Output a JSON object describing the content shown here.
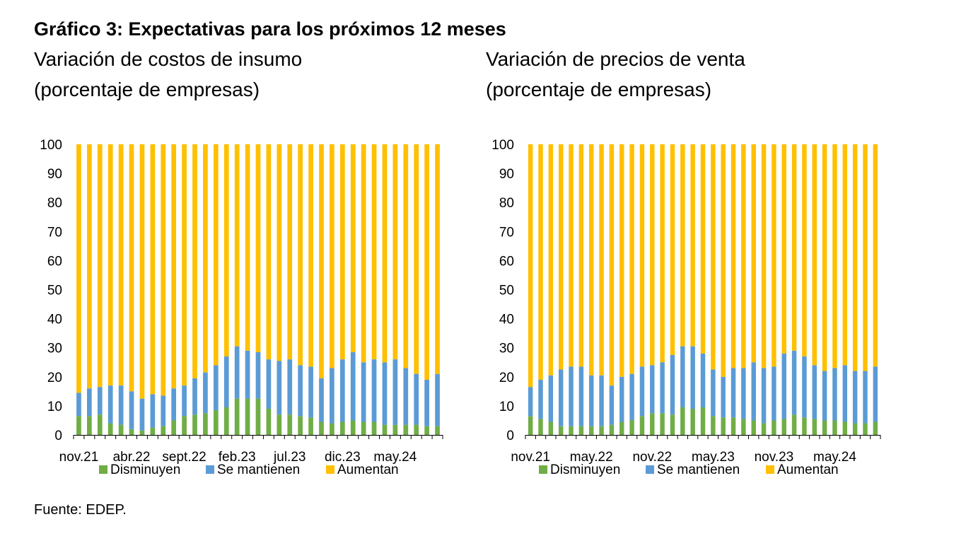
{
  "title": "Gráfico 3: Expectativas para los próximos 12 meses",
  "source": "Fuente: EDEP.",
  "colors": {
    "disminuyen": "#70AD47",
    "se_mantienen": "#5B9BD5",
    "aumentan": "#FFC000",
    "axis": "#000000"
  },
  "chart_data": [
    {
      "type": "bar",
      "stacked": true,
      "title_line1": "Variación de costos de insumo",
      "title_line2": "(porcentaje de empresas)",
      "ylim": [
        0,
        100
      ],
      "yticks": [
        0,
        10,
        20,
        30,
        40,
        50,
        60,
        70,
        80,
        90,
        100
      ],
      "x_tick_labels": [
        {
          "index": 0,
          "label": "nov.21"
        },
        {
          "index": 5,
          "label": "abr.22"
        },
        {
          "index": 10,
          "label": "sept.22"
        },
        {
          "index": 15,
          "label": "feb.23"
        },
        {
          "index": 20,
          "label": "jul.23"
        },
        {
          "index": 25,
          "label": "dic.23"
        },
        {
          "index": 30,
          "label": "may.24"
        }
      ],
      "legend": [
        "Disminuyen",
        "Se mantienen",
        "Aumentan"
      ],
      "series": [
        {
          "name": "Disminuyen",
          "values": [
            6.5,
            6.5,
            7,
            4,
            3.5,
            2,
            1.5,
            2.5,
            3,
            5,
            6.5,
            7,
            7.5,
            8.5,
            9.5,
            12.5,
            12.5,
            12.5,
            9,
            7,
            7,
            6.5,
            6,
            4.5,
            4,
            4.5,
            5,
            4.5,
            4.5,
            3.5,
            3.5,
            3.5,
            3.5,
            3,
            3
          ]
        },
        {
          "name": "Se mantienen",
          "values": [
            8,
            9.5,
            9.5,
            13,
            13.5,
            13,
            11,
            11.5,
            10.5,
            11,
            10.5,
            12.5,
            14,
            15.5,
            17.5,
            18,
            16.5,
            16,
            17,
            18.5,
            19,
            17.5,
            17.5,
            15,
            19,
            21.5,
            23.5,
            20.5,
            21.5,
            21.5,
            22.5,
            19.5,
            17.5,
            16,
            18
          ]
        },
        {
          "name": "Aumentan",
          "values": [
            85.5,
            84,
            83.5,
            83,
            83,
            85,
            87.5,
            86,
            86.5,
            84,
            83,
            80.5,
            78.5,
            76,
            73,
            69.5,
            71,
            71.5,
            74,
            74.5,
            74,
            76,
            76.5,
            80.5,
            77,
            74,
            71.5,
            75,
            74,
            75,
            74,
            77,
            79,
            81,
            79
          ]
        }
      ]
    },
    {
      "type": "bar",
      "stacked": true,
      "title_line1": "Variación de precios de venta",
      "title_line2": "(porcentaje de empresas)",
      "ylim": [
        0,
        100
      ],
      "yticks": [
        0,
        10,
        20,
        30,
        40,
        50,
        60,
        70,
        80,
        90,
        100
      ],
      "x_tick_labels": [
        {
          "index": 0,
          "label": "nov.21"
        },
        {
          "index": 6,
          "label": "may.22"
        },
        {
          "index": 12,
          "label": "nov.22"
        },
        {
          "index": 18,
          "label": "may.23"
        },
        {
          "index": 24,
          "label": "nov.23"
        },
        {
          "index": 30,
          "label": "may.24"
        }
      ],
      "legend": [
        "Disminuyen",
        "Se mantienen",
        "Aumentan"
      ],
      "series": [
        {
          "name": "Disminuyen",
          "values": [
            6.5,
            5.5,
            4.5,
            3,
            3,
            3,
            3,
            3,
            3.5,
            4.5,
            5,
            6.5,
            7.5,
            7.5,
            7,
            9.5,
            9,
            9.5,
            6.5,
            6,
            6,
            5.5,
            5,
            4,
            5,
            5.5,
            7,
            6,
            5.5,
            5,
            5,
            4.5,
            4,
            4,
            4.5
          ]
        },
        {
          "name": "Se mantienen",
          "values": [
            10,
            13.5,
            16,
            19.5,
            20.5,
            20.5,
            17.5,
            17.5,
            13.5,
            15.5,
            16,
            17,
            16.5,
            17.5,
            20.5,
            21,
            21.5,
            18.5,
            16,
            14,
            17,
            17.5,
            20,
            19,
            18.5,
            22.5,
            22,
            21,
            18.5,
            17,
            18,
            19.5,
            18,
            18,
            19
          ]
        },
        {
          "name": "Aumentan",
          "values": [
            83.5,
            81,
            79.5,
            77.5,
            76.5,
            76.5,
            79.5,
            79.5,
            83,
            80,
            79,
            76.5,
            76,
            75,
            72.5,
            69.5,
            69.5,
            72,
            77.5,
            80,
            77,
            77,
            75,
            77,
            76.5,
            72,
            71,
            73,
            76,
            78,
            77,
            76,
            78,
            78,
            76.5
          ]
        }
      ]
    }
  ]
}
